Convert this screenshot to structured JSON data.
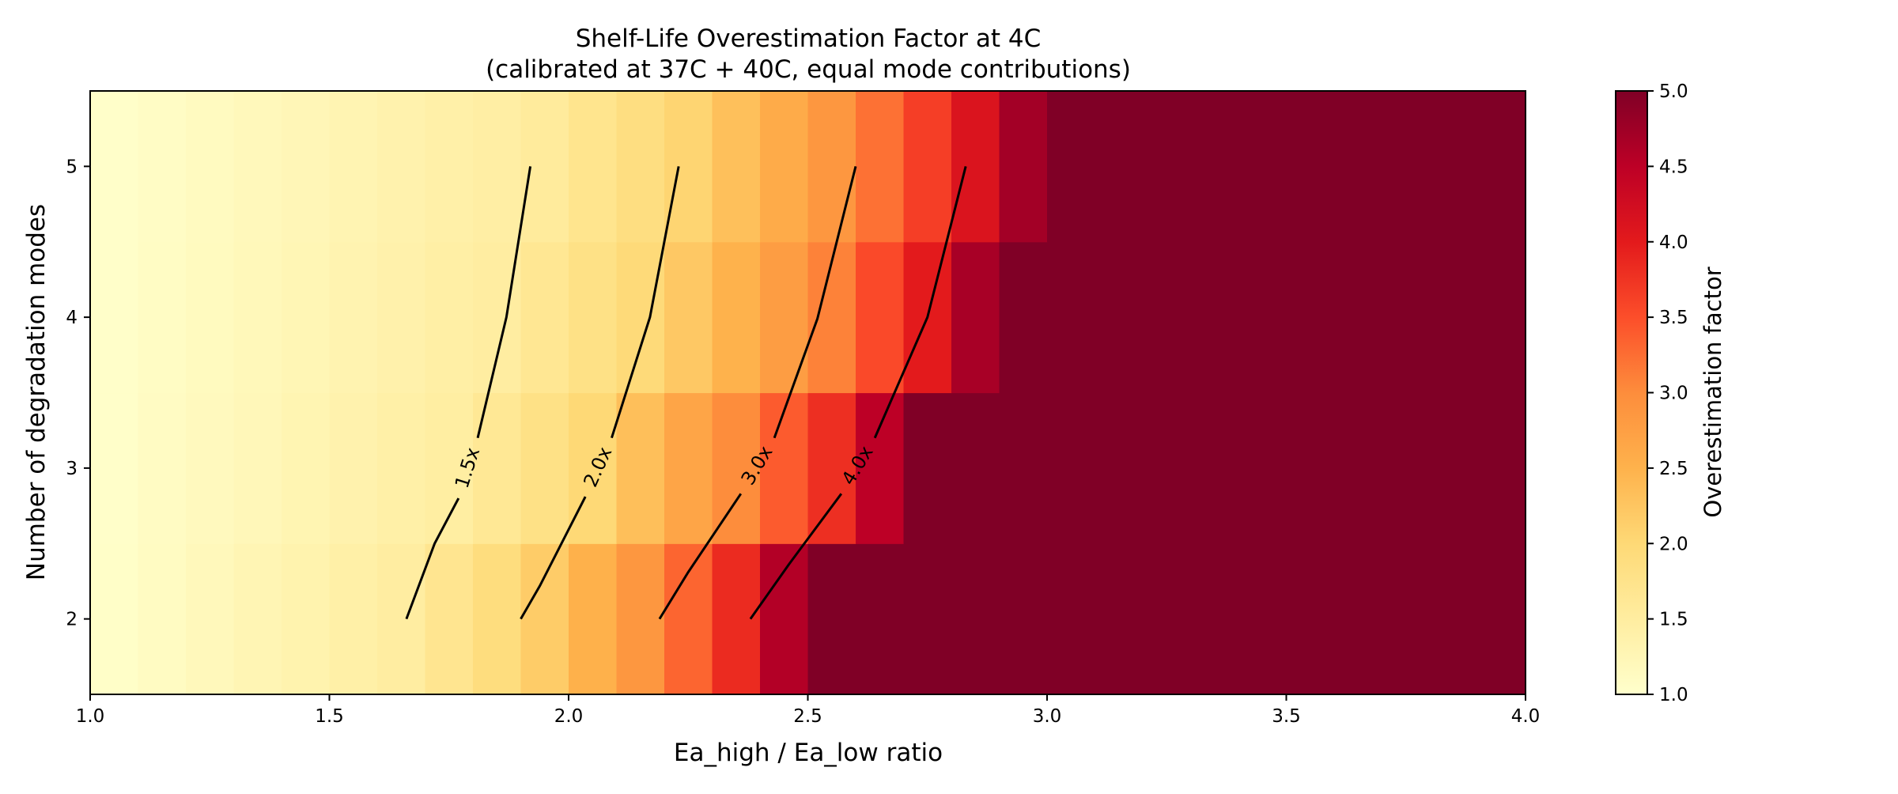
{
  "chart_data": {
    "type": "heatmap",
    "title": "Shelf-Life Overestimation Factor at 4C",
    "subtitle": "(calibrated at 37C + 40C, equal mode contributions)",
    "xlabel": "Ea_high / Ea_low ratio",
    "ylabel": "Number of degradation modes",
    "xlim": [
      1.0,
      4.0
    ],
    "ylim": [
      1.5,
      5.5
    ],
    "x_ticks": [
      "1.0",
      "1.5",
      "2.0",
      "2.5",
      "3.0",
      "3.5",
      "4.0"
    ],
    "y_ticks": [
      "2",
      "3",
      "4",
      "5"
    ],
    "x_bin_edges_start": 1.0,
    "x_bin_width": 0.1,
    "rows": [
      2,
      3,
      4,
      5
    ],
    "values": [
      [
        1.04,
        1.11,
        1.19,
        1.27,
        1.34,
        1.42,
        1.49,
        1.69,
        1.9,
        2.17,
        2.52,
        2.86,
        3.32,
        3.84,
        4.58,
        5,
        5,
        5,
        5,
        5,
        5,
        5,
        5,
        5,
        5,
        5,
        5,
        5,
        5,
        5
      ],
      [
        1.03,
        1.1,
        1.16,
        1.22,
        1.29,
        1.35,
        1.42,
        1.48,
        1.63,
        1.81,
        2.0,
        2.33,
        2.67,
        3.0,
        3.4,
        3.8,
        4.5,
        5,
        5,
        5,
        5,
        5,
        5,
        5,
        5,
        5,
        5,
        5,
        5,
        5
      ],
      [
        1.03,
        1.09,
        1.15,
        1.2,
        1.26,
        1.32,
        1.38,
        1.44,
        1.49,
        1.65,
        1.81,
        1.97,
        2.22,
        2.5,
        2.78,
        3.09,
        3.55,
        4.0,
        4.67,
        5,
        5,
        5,
        5,
        5,
        5,
        5,
        5,
        5,
        5,
        5
      ],
      [
        1.03,
        1.08,
        1.14,
        1.19,
        1.24,
        1.3,
        1.35,
        1.41,
        1.46,
        1.55,
        1.71,
        1.87,
        2.05,
        2.32,
        2.59,
        2.86,
        3.22,
        3.65,
        4.12,
        4.71,
        5,
        5,
        5,
        5,
        5,
        5,
        5,
        5,
        5,
        5
      ]
    ],
    "colormap": "YlOrRd",
    "colormap_stops": [
      "#ffffcc",
      "#ffeda0",
      "#fed976",
      "#feb24c",
      "#fd8d3c",
      "#fc4e2a",
      "#e31a1c",
      "#bd0026",
      "#800026"
    ],
    "vmin": 1.0,
    "vmax": 5.0,
    "colorbar": {
      "label": "Overestimation factor",
      "ticks": [
        "1.0",
        "1.5",
        "2.0",
        "2.5",
        "3.0",
        "3.5",
        "4.0",
        "4.5",
        "5.0"
      ]
    },
    "contours": [
      {
        "level": 1.5,
        "label": "1.5x",
        "segments": [
          [
            [
              1.661,
              2
            ],
            [
              1.72,
              2.5
            ],
            [
              1.77,
              2.8
            ]
          ],
          [
            [
              1.81,
              3.2
            ],
            [
              1.87,
              4
            ],
            [
              1.92,
              5
            ]
          ]
        ]
      },
      {
        "level": 2.0,
        "label": "2.0x",
        "segments": [
          [
            [
              1.9,
              2
            ],
            [
              1.94,
              2.22
            ],
            [
              2.035,
              2.81
            ]
          ],
          [
            [
              2.09,
              3.2
            ],
            [
              2.17,
              4
            ],
            [
              2.23,
              5
            ]
          ]
        ]
      },
      {
        "level": 3.0,
        "label": "3.0x",
        "segments": [
          [
            [
              2.19,
              2
            ],
            [
              2.25,
              2.31
            ],
            [
              2.36,
              2.83
            ]
          ],
          [
            [
              2.43,
              3.2
            ],
            [
              2.52,
              3.99
            ],
            [
              2.6,
              5
            ]
          ]
        ]
      },
      {
        "level": 4.0,
        "label": "4.0x",
        "segments": [
          [
            [
              2.38,
              2
            ],
            [
              2.46,
              2.36
            ],
            [
              2.57,
              2.83
            ]
          ],
          [
            [
              2.64,
              3.2
            ],
            [
              2.75,
              4
            ],
            [
              2.83,
              5
            ]
          ]
        ]
      }
    ]
  }
}
